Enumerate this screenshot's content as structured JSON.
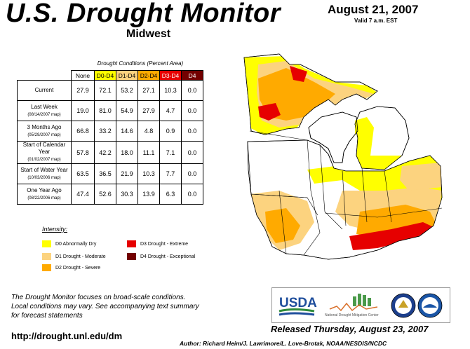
{
  "header": {
    "title": "U.S. Drought Monitor",
    "region": "Midwest",
    "date": "August 21, 2007",
    "valid": "Valid 7 a.m. EST"
  },
  "table": {
    "caption": "Drought Conditions (Percent Area)",
    "columns": [
      "None",
      "D0-D4",
      "D1-D4",
      "D2-D4",
      "D3-D4",
      "D4"
    ],
    "rows": [
      {
        "label": "Current",
        "sub": "",
        "values": [
          "27.9",
          "72.1",
          "53.2",
          "27.1",
          "10.3",
          "0.0"
        ]
      },
      {
        "label": "Last Week",
        "sub": "(08/14/2007 map)",
        "values": [
          "19.0",
          "81.0",
          "54.9",
          "27.9",
          "4.7",
          "0.0"
        ]
      },
      {
        "label": "3 Months Ago",
        "sub": "(05/29/2007 map)",
        "values": [
          "66.8",
          "33.2",
          "14.6",
          "4.8",
          "0.9",
          "0.0"
        ]
      },
      {
        "label": "Start of Calendar Year",
        "sub": "(01/02/2007 map)",
        "values": [
          "57.8",
          "42.2",
          "18.0",
          "11.1",
          "7.1",
          "0.0"
        ]
      },
      {
        "label": "Start of Water Year",
        "sub": "(10/03/2006 map)",
        "values": [
          "63.5",
          "36.5",
          "21.9",
          "10.3",
          "7.7",
          "0.0"
        ]
      },
      {
        "label": "One Year Ago",
        "sub": "(08/22/2006 map)",
        "values": [
          "47.4",
          "52.6",
          "30.3",
          "13.9",
          "6.3",
          "0.0"
        ]
      }
    ]
  },
  "legend": {
    "title": "Intensity:",
    "items": [
      {
        "label": "D0 Abnormally Dry",
        "color": "#ffff00"
      },
      {
        "label": "D1 Drought - Moderate",
        "color": "#fcd37f"
      },
      {
        "label": "D2 Drought - Severe",
        "color": "#ffaa00"
      },
      {
        "label": "D3 Drought - Extreme",
        "color": "#e60000"
      },
      {
        "label": "D4 Drought - Exceptional",
        "color": "#730000"
      }
    ]
  },
  "footnote": {
    "line1": "The Drought Monitor focuses on broad-scale conditions.",
    "line2": "Local conditions may vary. See accompanying text summary",
    "line3": "for forecast statements"
  },
  "url": "http://drought.unl.edu/dm",
  "released": "Released Thursday, August 23, 2007",
  "author": "Author: Richard Heim/J. Lawrimore/L. Love-Brotak, NOAA/NESDIS/NCDC",
  "logos": {
    "usda": "USDA",
    "ndmc": "National Drought Mitigation Center"
  },
  "colors": {
    "none": "#ffffff",
    "d0": "#ffff00",
    "d1": "#fcd37f",
    "d2": "#ffaa00",
    "d3": "#e60000",
    "d4": "#730000"
  }
}
